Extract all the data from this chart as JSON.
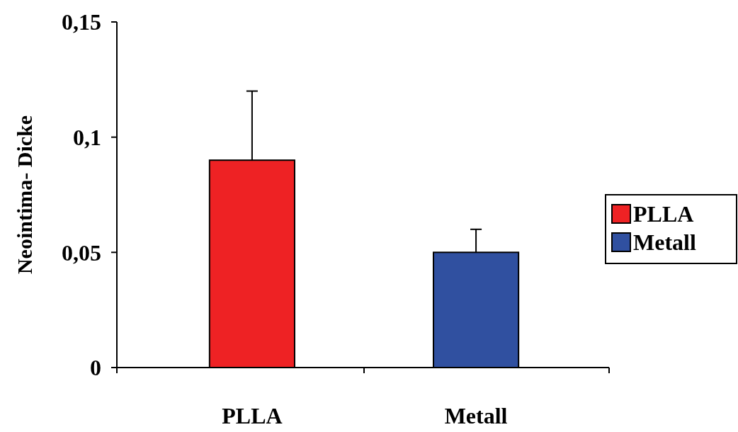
{
  "chart_data": {
    "type": "bar",
    "ylabel": "Neointima- Dicke",
    "categories": [
      "PLLA",
      "Metall"
    ],
    "series": [
      {
        "name": "PLLA",
        "color": "#ee2224",
        "values": [
          0.09,
          null
        ],
        "errors": [
          [
            0.09,
            0.12
          ],
          null
        ]
      },
      {
        "name": "Metall",
        "color": "#3050a0",
        "values": [
          null,
          0.05
        ],
        "errors": [
          null,
          [
            0.05,
            0.06
          ]
        ]
      }
    ],
    "ylim": [
      0,
      0.15
    ],
    "yticks": [
      0,
      {
        "value": 0.05,
        "label": "0,05"
      },
      {
        "value": 0.1,
        "label": "0,1"
      },
      {
        "value": 0.15,
        "label": "0,15"
      }
    ],
    "legend": "right"
  }
}
